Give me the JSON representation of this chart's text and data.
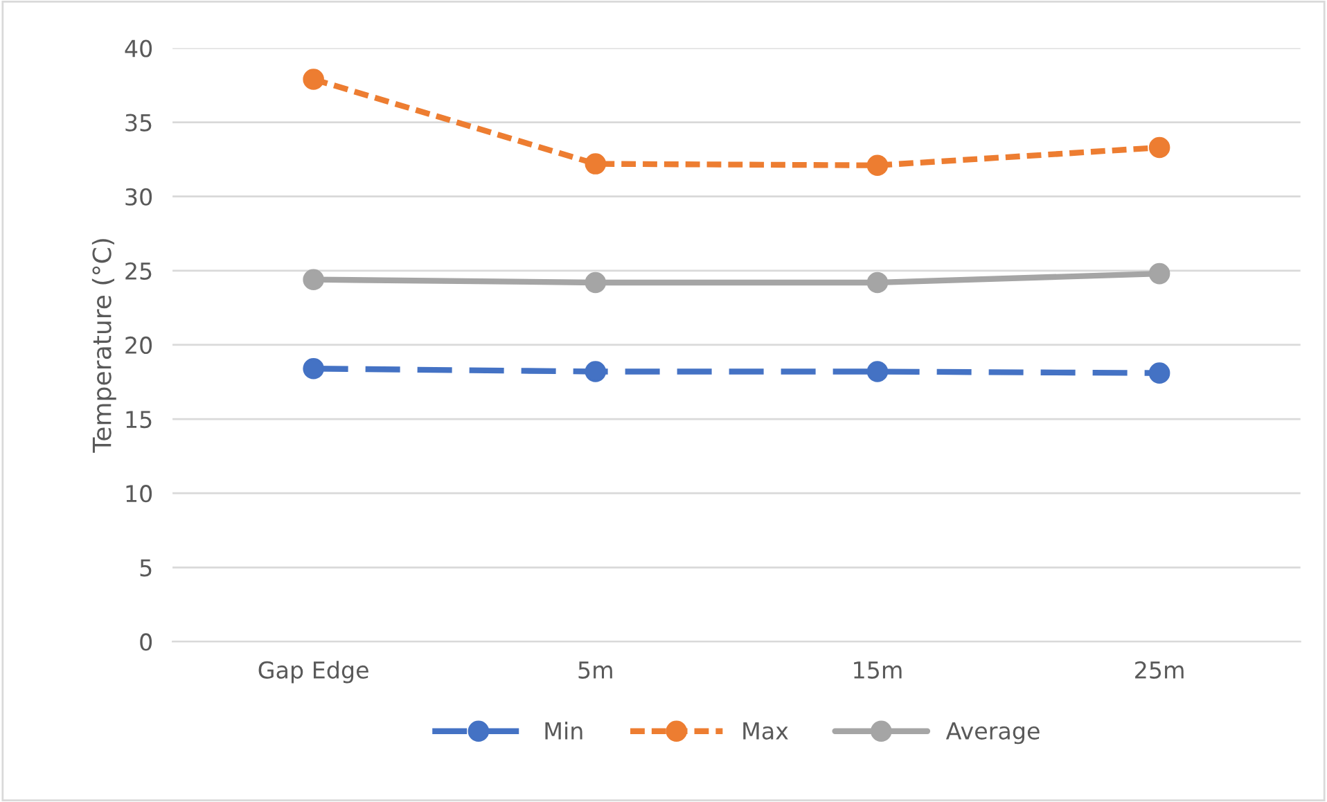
{
  "chart_data": {
    "type": "line",
    "ylabel": "Temperature (°C)",
    "categories": [
      "Gap Edge",
      "5m",
      "15m",
      "25m"
    ],
    "series": [
      {
        "name": "Min",
        "color": "#4472c4",
        "values": [
          18.4,
          18.2,
          18.2,
          18.1
        ],
        "line_style": "dashed"
      },
      {
        "name": "Max",
        "color": "#ed7d31",
        "values": [
          37.9,
          32.2,
          32.1,
          33.3
        ],
        "line_style": "dotted"
      },
      {
        "name": "Average",
        "color": "#a5a5a5",
        "values": [
          24.4,
          24.2,
          24.2,
          24.8
        ],
        "line_style": "solid"
      }
    ],
    "ylim": [
      0,
      40
    ],
    "yticks": [
      0,
      5,
      10,
      15,
      20,
      25,
      30,
      35,
      40
    ],
    "grid": "y",
    "legend": "bottom",
    "marker": "circle"
  }
}
